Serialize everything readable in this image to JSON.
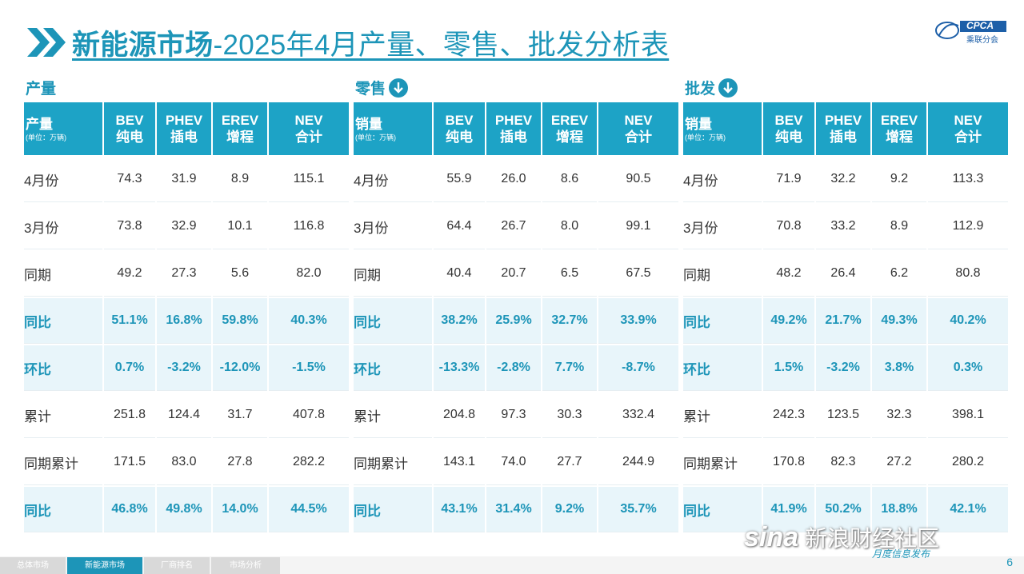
{
  "title": {
    "strong": "新能源市场",
    "rest": "-2025年4月产量、零售、批发分析表"
  },
  "logo_text": "CPCA",
  "logo_sub": "乘联分会",
  "sections": [
    {
      "label": "产量",
      "has_arrow": false,
      "header": {
        "title": "产量",
        "unit": "(单位：万辆)",
        "cols": [
          {
            "l1": "BEV",
            "l2": "纯电"
          },
          {
            "l1": "PHEV",
            "l2": "插电"
          },
          {
            "l1": "EREV",
            "l2": "增程"
          },
          {
            "l1": "NEV",
            "l2": "合计"
          }
        ]
      },
      "rows": [
        {
          "label": "4月份",
          "v": [
            "74.3",
            "31.9",
            "8.9",
            "115.1"
          ]
        },
        {
          "label": "3月份",
          "v": [
            "73.8",
            "32.9",
            "10.1",
            "116.8"
          ]
        },
        {
          "label": "同期",
          "v": [
            "49.2",
            "27.3",
            "5.6",
            "82.0"
          ]
        },
        {
          "label": "同比",
          "v": [
            "51.1%",
            "16.8%",
            "59.8%",
            "40.3%"
          ]
        },
        {
          "label": "环比",
          "v": [
            "0.7%",
            "-3.2%",
            "-12.0%",
            "-1.5%"
          ]
        },
        {
          "label": "累计",
          "v": [
            "251.8",
            "124.4",
            "31.7",
            "407.8"
          ]
        },
        {
          "label": "同期累计",
          "v": [
            "171.5",
            "83.0",
            "27.8",
            "282.2"
          ]
        },
        {
          "label": "同比",
          "v": [
            "46.8%",
            "49.8%",
            "14.0%",
            "44.5%"
          ]
        }
      ]
    },
    {
      "label": "零售",
      "has_arrow": true,
      "header": {
        "title": "销量",
        "unit": "(单位：万辆)",
        "cols": [
          {
            "l1": "BEV",
            "l2": "纯电"
          },
          {
            "l1": "PHEV",
            "l2": "插电"
          },
          {
            "l1": "EREV",
            "l2": "增程"
          },
          {
            "l1": "NEV",
            "l2": "合计"
          }
        ]
      },
      "rows": [
        {
          "label": "4月份",
          "v": [
            "55.9",
            "26.0",
            "8.6",
            "90.5"
          ]
        },
        {
          "label": "3月份",
          "v": [
            "64.4",
            "26.7",
            "8.0",
            "99.1"
          ]
        },
        {
          "label": "同期",
          "v": [
            "40.4",
            "20.7",
            "6.5",
            "67.5"
          ]
        },
        {
          "label": "同比",
          "v": [
            "38.2%",
            "25.9%",
            "32.7%",
            "33.9%"
          ]
        },
        {
          "label": "环比",
          "v": [
            "-13.3%",
            "-2.8%",
            "7.7%",
            "-8.7%"
          ]
        },
        {
          "label": "累计",
          "v": [
            "204.8",
            "97.3",
            "30.3",
            "332.4"
          ]
        },
        {
          "label": "同期累计",
          "v": [
            "143.1",
            "74.0",
            "27.7",
            "244.9"
          ]
        },
        {
          "label": "同比",
          "v": [
            "43.1%",
            "31.4%",
            "9.2%",
            "35.7%"
          ]
        }
      ]
    },
    {
      "label": "批发",
      "has_arrow": true,
      "header": {
        "title": "销量",
        "unit": "(单位：万辆)",
        "cols": [
          {
            "l1": "BEV",
            "l2": "纯电"
          },
          {
            "l1": "PHEV",
            "l2": "插电"
          },
          {
            "l1": "EREV",
            "l2": "增程"
          },
          {
            "l1": "NEV",
            "l2": "合计"
          }
        ]
      },
      "rows": [
        {
          "label": "4月份",
          "v": [
            "71.9",
            "32.2",
            "9.2",
            "113.3"
          ]
        },
        {
          "label": "3月份",
          "v": [
            "70.8",
            "33.2",
            "8.9",
            "112.9"
          ]
        },
        {
          "label": "同期",
          "v": [
            "48.2",
            "26.4",
            "6.2",
            "80.8"
          ]
        },
        {
          "label": "同比",
          "v": [
            "49.2%",
            "21.7%",
            "49.3%",
            "40.2%"
          ]
        },
        {
          "label": "环比",
          "v": [
            "1.5%",
            "-3.2%",
            "3.8%",
            "0.3%"
          ]
        },
        {
          "label": "累计",
          "v": [
            "242.3",
            "123.5",
            "32.3",
            "398.1"
          ]
        },
        {
          "label": "同期累计",
          "v": [
            "170.8",
            "82.3",
            "27.2",
            "280.2"
          ]
        },
        {
          "label": "同比",
          "v": [
            "41.9%",
            "50.2%",
            "18.8%",
            "42.1%"
          ]
        }
      ]
    }
  ],
  "highlight_rows": [
    3,
    4,
    7
  ],
  "footer": {
    "tabs": [
      {
        "label": "总体市场",
        "active": false
      },
      {
        "label": "新能源市场",
        "active": true
      },
      {
        "label": "厂商排名",
        "active": false
      },
      {
        "label": "市场分析",
        "active": false
      }
    ],
    "page": "6",
    "watermark": "新浪财经社区",
    "watermark_sub": "月度信息发布"
  },
  "colors": {
    "accent": "#1d95b8",
    "header_bg": "#1da3c6",
    "highlight_bg": "#e8f5fa"
  }
}
